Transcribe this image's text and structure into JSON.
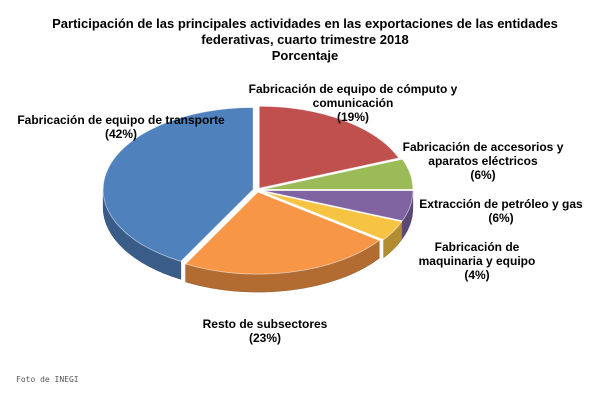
{
  "chart_data": {
    "type": "pie",
    "title_lines": [
      "Participación de las principales actividades en las exportaciones de las entidades",
      "federativas, cuarto trimestre 2018",
      "Porcentaje"
    ],
    "slices": [
      {
        "label_lines": [
          "Fabricación de equipo de cómputo y",
          "comunicación"
        ],
        "value": 19,
        "value_label": "(19%)",
        "color": "#c0504d"
      },
      {
        "label_lines": [
          "Fabricación de accesorios y",
          "aparatos eléctricos"
        ],
        "value": 6,
        "value_label": "(6%)",
        "color": "#9bbb59"
      },
      {
        "label_lines": [
          "Extracción de petróleo y gas"
        ],
        "value": 6,
        "value_label": "(6%)",
        "color": "#8064a2"
      },
      {
        "label_lines": [
          "Fabricación de",
          "maquinaria y equipo"
        ],
        "value": 4,
        "value_label": "(4%)",
        "color": "#f6c342"
      },
      {
        "label_lines": [
          "Resto de subsectores"
        ],
        "value": 23,
        "value_label": "(23%)",
        "color": "#f79646"
      },
      {
        "label_lines": [
          "Fabricación de equipo de transporte"
        ],
        "value": 42,
        "value_label": "(42%)",
        "color": "#4f81bd"
      }
    ],
    "style": "3d-exploded"
  },
  "credit": "Foto de INEGI"
}
